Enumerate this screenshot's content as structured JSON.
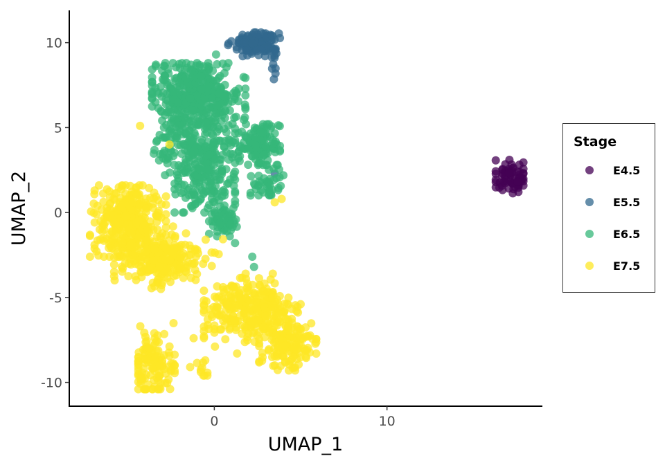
{
  "chart_data": {
    "type": "scatter",
    "title": "",
    "xlabel": "UMAP_1",
    "ylabel": "UMAP_2",
    "xlim": [
      -8.4,
      19.0
    ],
    "ylim": [
      -11.4,
      11.9
    ],
    "x_ticks": [
      0,
      10
    ],
    "y_ticks": [
      10,
      5,
      0,
      -5,
      -10
    ],
    "x_tick_labels": [
      "0",
      "10"
    ],
    "y_tick_labels": [
      "10",
      "5",
      "0",
      "-5",
      "-10"
    ],
    "grid": false,
    "point_opacity": 0.75,
    "legend": {
      "title": "Stage",
      "position": "right"
    },
    "series": [
      {
        "name": "E4.5",
        "color": "#440154",
        "clusters": [
          {
            "cx": 17.1,
            "cy": 2.1,
            "sx": 0.55,
            "sy": 0.5,
            "n": 70,
            "rx": [
              16.3,
              17.9
            ],
            "ry": [
              0.9,
              3.1
            ]
          }
        ],
        "points": []
      },
      {
        "name": "E5.5",
        "color": "#31688E",
        "clusters": [
          {
            "cx": 2.4,
            "cy": 10.0,
            "sx": 0.65,
            "sy": 0.35,
            "n": 150,
            "rx": [
              0.8,
              3.8
            ],
            "ry": [
              9.2,
              10.6
            ]
          },
          {
            "cx": 3.5,
            "cy": 8.8,
            "sx": 0.08,
            "sy": 0.6,
            "n": 10,
            "rx": [
              3.3,
              3.6
            ],
            "ry": [
              7.7,
              9.6
            ]
          }
        ],
        "points": [
          [
            3.5,
            2.3
          ],
          [
            1.3,
            9.6
          ]
        ]
      },
      {
        "name": "E6.5",
        "color": "#35B779",
        "clusters": [
          {
            "cx": -1.0,
            "cy": 7.0,
            "sx": 1.3,
            "sy": 0.9,
            "n": 420,
            "rx": [
              -3.6,
              1.8
            ],
            "ry": [
              5.0,
              8.8
            ]
          },
          {
            "cx": -1.0,
            "cy": 4.0,
            "sx": 1.2,
            "sy": 0.9,
            "n": 220,
            "rx": [
              -3.5,
              1.2
            ],
            "ry": [
              2.2,
              6.0
            ]
          },
          {
            "cx": 2.6,
            "cy": 4.0,
            "sx": 0.6,
            "sy": 0.6,
            "n": 130,
            "rx": [
              1.4,
              3.8
            ],
            "ry": [
              2.8,
              5.2
            ]
          },
          {
            "cx": -0.5,
            "cy": 1.6,
            "sx": 0.9,
            "sy": 0.9,
            "n": 130,
            "rx": [
              -2.3,
              1.2
            ],
            "ry": [
              0.0,
              3.4
            ]
          },
          {
            "cx": 0.5,
            "cy": -0.4,
            "sx": 0.4,
            "sy": 0.5,
            "n": 60,
            "rx": [
              -0.3,
              1.3
            ],
            "ry": [
              -1.4,
              1.0
            ]
          },
          {
            "cx": 3.1,
            "cy": 1.8,
            "sx": 0.5,
            "sy": 0.5,
            "n": 45,
            "rx": [
              2.1,
              4.0
            ],
            "ry": [
              0.8,
              2.8
            ]
          }
        ],
        "points": [
          [
            1.2,
            -1.8
          ],
          [
            2.2,
            -2.6
          ],
          [
            2.3,
            -3.2
          ],
          [
            0.1,
            9.3
          ],
          [
            -0.6,
            8.6
          ]
        ]
      },
      {
        "name": "E7.5",
        "color": "#FDE725",
        "clusters": [
          {
            "cx": -5.0,
            "cy": -0.5,
            "sx": 1.0,
            "sy": 1.0,
            "n": 330,
            "rx": [
              -7.2,
              -2.8
            ],
            "ry": [
              -2.6,
              1.6
            ]
          },
          {
            "cx": -3.2,
            "cy": -2.7,
            "sx": 1.3,
            "sy": 0.8,
            "n": 260,
            "rx": [
              -5.8,
              0.5
            ],
            "ry": [
              -4.7,
              -0.8
            ]
          },
          {
            "cx": 2.0,
            "cy": -5.8,
            "sx": 1.4,
            "sy": 0.9,
            "n": 300,
            "rx": [
              -0.6,
              5.0
            ],
            "ry": [
              -8.3,
              -3.6
            ]
          },
          {
            "cx": 4.3,
            "cy": -7.8,
            "sx": 0.9,
            "sy": 0.8,
            "n": 140,
            "rx": [
              2.6,
              5.9
            ],
            "ry": [
              -9.3,
              -5.8
            ]
          },
          {
            "cx": -3.5,
            "cy": -9.0,
            "sx": 0.6,
            "sy": 0.9,
            "n": 130,
            "rx": [
              -4.4,
              -2.3
            ],
            "ry": [
              -10.4,
              -6.2
            ]
          },
          {
            "cx": -0.7,
            "cy": -9.3,
            "sx": 0.25,
            "sy": 0.3,
            "n": 10,
            "rx": [
              -1.1,
              -0.4
            ],
            "ry": [
              -9.6,
              -8.7
            ]
          }
        ],
        "points": [
          [
            -4.3,
            5.1
          ],
          [
            -2.6,
            4.0
          ],
          [
            3.9,
            0.8
          ],
          [
            3.5,
            0.6
          ],
          [
            -0.5,
            -1.6
          ],
          [
            -1.2,
            -7.4
          ],
          [
            -1.4,
            -9.1
          ]
        ]
      }
    ]
  }
}
